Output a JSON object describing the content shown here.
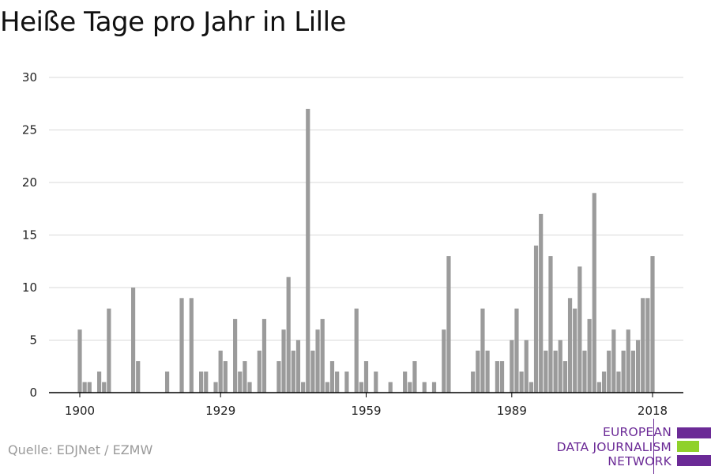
{
  "title": "Heiße Tage pro Jahr in Lille",
  "source": "Quelle: EDJNet / EZMW",
  "logo": {
    "lines": [
      "EUROPEAN",
      "DATA JOURNALISM",
      "NETWORK"
    ],
    "colors": [
      "#6b2a96",
      "#8fd12a",
      "#6b2a96"
    ]
  },
  "colors": {
    "bar": "#9b9b9b",
    "grid": "#d9d9d9",
    "axis": "#000000"
  },
  "chart_data": {
    "type": "bar",
    "title": "Heiße Tage pro Jahr in Lille",
    "xlabel": "",
    "ylabel": "",
    "ylim": [
      0,
      30
    ],
    "yticks": [
      0,
      5,
      10,
      15,
      20,
      25,
      30
    ],
    "xticks": [
      1900,
      1929,
      1959,
      1989,
      2018
    ],
    "grid": true,
    "categories": [
      1900,
      1901,
      1902,
      1903,
      1904,
      1905,
      1906,
      1907,
      1908,
      1909,
      1910,
      1911,
      1912,
      1913,
      1914,
      1915,
      1916,
      1917,
      1918,
      1919,
      1920,
      1921,
      1922,
      1923,
      1924,
      1925,
      1926,
      1927,
      1928,
      1929,
      1930,
      1931,
      1932,
      1933,
      1934,
      1935,
      1936,
      1937,
      1938,
      1939,
      1940,
      1941,
      1942,
      1943,
      1944,
      1945,
      1946,
      1947,
      1948,
      1949,
      1950,
      1951,
      1952,
      1953,
      1954,
      1955,
      1956,
      1957,
      1958,
      1959,
      1960,
      1961,
      1962,
      1963,
      1964,
      1965,
      1966,
      1967,
      1968,
      1969,
      1970,
      1971,
      1972,
      1973,
      1974,
      1975,
      1976,
      1977,
      1978,
      1979,
      1980,
      1981,
      1982,
      1983,
      1984,
      1985,
      1986,
      1987,
      1988,
      1989,
      1990,
      1991,
      1992,
      1993,
      1994,
      1995,
      1996,
      1997,
      1998,
      1999,
      2000,
      2001,
      2002,
      2003,
      2004,
      2005,
      2006,
      2007,
      2008,
      2009,
      2010,
      2011,
      2012,
      2013,
      2014,
      2015,
      2016,
      2017,
      2018
    ],
    "values": [
      6,
      1,
      1,
      0,
      2,
      1,
      8,
      0,
      0,
      0,
      0,
      10,
      3,
      0,
      0,
      0,
      0,
      0,
      2,
      0,
      0,
      9,
      0,
      9,
      0,
      2,
      2,
      0,
      1,
      4,
      3,
      0,
      7,
      2,
      3,
      1,
      0,
      4,
      7,
      0,
      0,
      3,
      6,
      11,
      4,
      5,
      1,
      27,
      4,
      6,
      7,
      1,
      3,
      2,
      0,
      2,
      0,
      8,
      1,
      3,
      0,
      2,
      0,
      0,
      1,
      0,
      0,
      2,
      1,
      3,
      0,
      1,
      0,
      1,
      0,
      6,
      13,
      0,
      0,
      0,
      0,
      2,
      4,
      8,
      4,
      0,
      3,
      3,
      0,
      5,
      8,
      2,
      5,
      1,
      14,
      17,
      4,
      13,
      4,
      5,
      3,
      9,
      8,
      12,
      4,
      7,
      19,
      1,
      2,
      4,
      6,
      2,
      4,
      6,
      4,
      5,
      9,
      9,
      13
    ]
  }
}
